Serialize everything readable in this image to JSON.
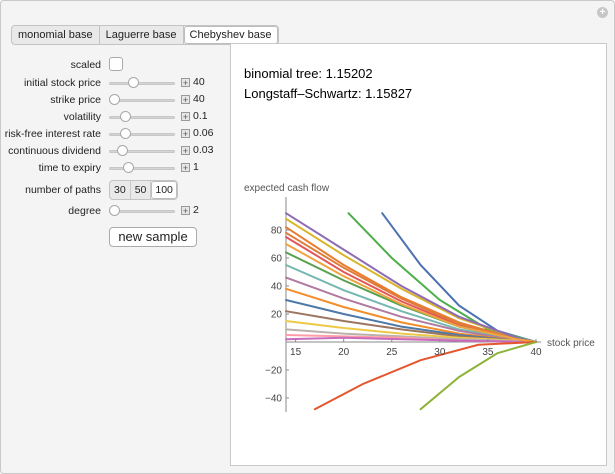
{
  "tabs": [
    {
      "label": "monomial base",
      "active": false
    },
    {
      "label": "Laguerre base",
      "active": false
    },
    {
      "label": "Chebyshev base",
      "active": true
    }
  ],
  "controls": {
    "scaled": {
      "label": "scaled",
      "checked": false
    },
    "initial_stock_price": {
      "label": "initial stock price",
      "value": "40",
      "level": 0.35
    },
    "strike_price": {
      "label": "strike price",
      "value": "40",
      "level": 0.0
    },
    "volatility": {
      "label": "volatility",
      "value": "0.1",
      "level": 0.2
    },
    "risk_free_interest_rate": {
      "label": "risk-free interest rate",
      "value": "0.06",
      "level": 0.2
    },
    "continuous_dividend": {
      "label": "continuous dividend",
      "value": "0.03",
      "level": 0.14
    },
    "time_to_expiry": {
      "label": "time to expiry",
      "value": "1",
      "level": 0.25
    },
    "number_of_paths": {
      "label": "number of paths",
      "options": [
        "30",
        "50",
        "100"
      ],
      "selected": "100"
    },
    "degree": {
      "label": "degree",
      "value": "2",
      "level": 0.0
    },
    "new_sample_label": "new sample"
  },
  "results": {
    "binomial": "binomial tree: 1.15202",
    "longstaff": "Longstaff–Schwartz: 1.15827"
  },
  "chart_data": {
    "type": "line",
    "xlabel": "stock price",
    "ylabel": "expected cash flow",
    "xlim": [
      14,
      40
    ],
    "ylim": [
      -50,
      95
    ],
    "xticks": [
      "15",
      "20",
      "25",
      "30",
      "35",
      "40"
    ],
    "yticks": [
      "80",
      "60",
      "40",
      "20",
      "−20",
      "−40"
    ],
    "series": [
      {
        "color": "#4c72b0",
        "points": [
          [
            24,
            92
          ],
          [
            28,
            55
          ],
          [
            32,
            26
          ],
          [
            36,
            8
          ],
          [
            40,
            0
          ]
        ]
      },
      {
        "color": "#4dae4a",
        "points": [
          [
            20.5,
            92
          ],
          [
            25,
            60
          ],
          [
            30,
            30
          ],
          [
            35,
            9
          ],
          [
            40,
            0
          ]
        ]
      },
      {
        "color": "#e87d2f",
        "points": [
          [
            14,
            82
          ],
          [
            20,
            55
          ],
          [
            26,
            32
          ],
          [
            32,
            14
          ],
          [
            38,
            2
          ],
          [
            40,
            0
          ]
        ]
      },
      {
        "color": "#d9b428",
        "points": [
          [
            14,
            88
          ],
          [
            20,
            62
          ],
          [
            26,
            38
          ],
          [
            32,
            17
          ],
          [
            38,
            3
          ],
          [
            40,
            0
          ]
        ]
      },
      {
        "color": "#8e6bb5",
        "points": [
          [
            14,
            92
          ],
          [
            20,
            66
          ],
          [
            26,
            40
          ],
          [
            32,
            18
          ],
          [
            38,
            3
          ],
          [
            40,
            0
          ]
        ]
      },
      {
        "color": "#e15759",
        "points": [
          [
            14,
            75
          ],
          [
            20,
            50
          ],
          [
            26,
            29
          ],
          [
            32,
            12
          ],
          [
            38,
            2
          ],
          [
            40,
            0
          ]
        ]
      },
      {
        "color": "#59a14f",
        "points": [
          [
            14,
            64
          ],
          [
            20,
            44
          ],
          [
            26,
            26
          ],
          [
            32,
            11
          ],
          [
            38,
            2
          ],
          [
            40,
            0
          ]
        ]
      },
      {
        "color": "#76b7b2",
        "points": [
          [
            14,
            55
          ],
          [
            20,
            37
          ],
          [
            26,
            22
          ],
          [
            32,
            9
          ],
          [
            38,
            2
          ],
          [
            40,
            0
          ]
        ]
      },
      {
        "color": "#b07aa1",
        "points": [
          [
            14,
            46
          ],
          [
            20,
            31
          ],
          [
            26,
            18
          ],
          [
            32,
            8
          ],
          [
            38,
            1
          ],
          [
            40,
            0
          ]
        ]
      },
      {
        "color": "#f28e2b",
        "points": [
          [
            14,
            38
          ],
          [
            20,
            25
          ],
          [
            26,
            14
          ],
          [
            32,
            6
          ],
          [
            38,
            1
          ],
          [
            40,
            0
          ]
        ]
      },
      {
        "color": "#4e79a7",
        "points": [
          [
            14,
            30
          ],
          [
            20,
            20
          ],
          [
            26,
            11
          ],
          [
            32,
            5
          ],
          [
            38,
            1
          ],
          [
            40,
            0
          ]
        ]
      },
      {
        "color": "#9c755f",
        "points": [
          [
            14,
            22
          ],
          [
            20,
            15
          ],
          [
            26,
            9
          ],
          [
            32,
            4
          ],
          [
            38,
            1
          ],
          [
            40,
            0
          ]
        ]
      },
      {
        "color": "#edc948",
        "points": [
          [
            14,
            15
          ],
          [
            20,
            10
          ],
          [
            26,
            6
          ],
          [
            32,
            3
          ],
          [
            38,
            1
          ],
          [
            40,
            0
          ]
        ]
      },
      {
        "color": "#bab0ac",
        "points": [
          [
            14,
            9
          ],
          [
            20,
            6
          ],
          [
            26,
            4
          ],
          [
            32,
            2
          ],
          [
            38,
            0.5
          ],
          [
            40,
            0
          ]
        ]
      },
      {
        "color": "#ff9da7",
        "points": [
          [
            14,
            5
          ],
          [
            20,
            4
          ],
          [
            26,
            3
          ],
          [
            32,
            1
          ],
          [
            38,
            0.3
          ],
          [
            40,
            0
          ]
        ]
      },
      {
        "color": "#c76bbd",
        "points": [
          [
            14,
            2
          ],
          [
            20,
            3
          ],
          [
            26,
            2
          ],
          [
            32,
            1
          ],
          [
            38,
            0.2
          ],
          [
            40,
            0
          ]
        ]
      },
      {
        "color": "#e07b39",
        "points": [
          [
            14,
            78
          ],
          [
            20,
            53
          ],
          [
            26,
            31
          ],
          [
            32,
            13
          ],
          [
            38,
            2
          ],
          [
            40,
            0
          ]
        ]
      },
      {
        "color": "#f1a340",
        "points": [
          [
            14,
            70
          ],
          [
            20,
            47
          ],
          [
            26,
            27
          ],
          [
            32,
            11
          ],
          [
            38,
            2
          ],
          [
            40,
            0
          ]
        ]
      },
      {
        "color": "#e4572e",
        "points": [
          [
            17,
            -48
          ],
          [
            22,
            -30
          ],
          [
            28,
            -13
          ],
          [
            34,
            -2
          ],
          [
            40,
            0
          ]
        ]
      },
      {
        "color": "#8db33a",
        "points": [
          [
            28,
            -48
          ],
          [
            32,
            -25
          ],
          [
            36,
            -8
          ],
          [
            40,
            0
          ]
        ]
      }
    ]
  }
}
